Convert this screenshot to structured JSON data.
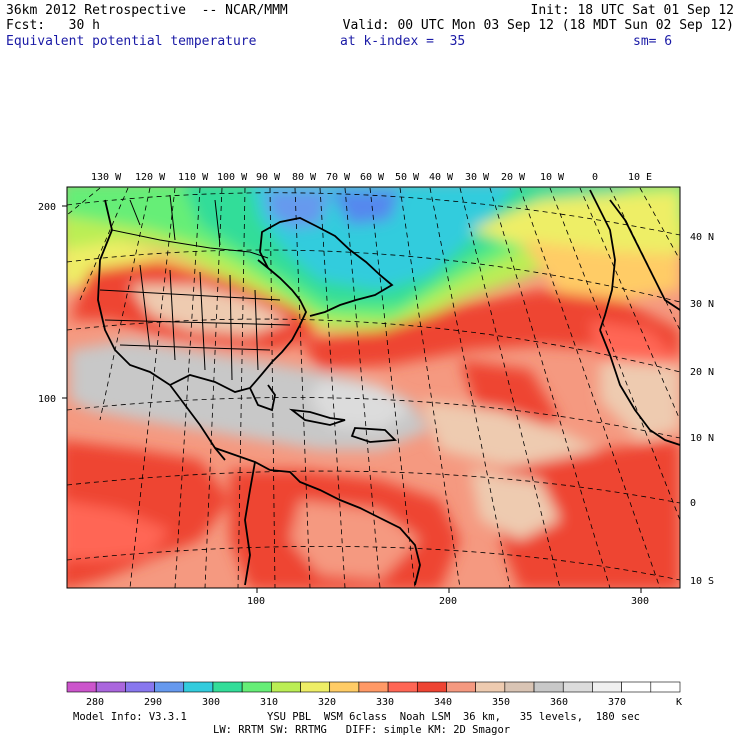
{
  "header": {
    "line1_left": "36km 2012 Retrospective  -- NCAR/MMM",
    "line1_right": "Init: 18 UTC Sat 01 Sep 12",
    "line2_left": "Fcst:   30 h",
    "line2_right": "Valid: 00 UTC Mon 03 Sep 12 (18 MDT Sun 02 Sep 12)",
    "line3_field": "Equivalent potential temperature",
    "line3_level": "at k-index =  35",
    "line3_sm": "sm= 6"
  },
  "map": {
    "top_lon_labels": [
      "130 W",
      "120 W",
      "110 W",
      "100 W",
      "90 W",
      "80 W",
      "70 W",
      "60 W",
      "50 W",
      "40 W",
      "30 W",
      "20 W",
      "10 W",
      "0",
      "10 E"
    ],
    "right_lat_labels": [
      "40 N",
      "30 N",
      "20 N",
      "10 N",
      "0",
      "10 S"
    ],
    "left_grid_labels": [
      "200",
      "100"
    ],
    "bottom_grid_labels": [
      "100",
      "200",
      "300"
    ]
  },
  "colorbar": {
    "colors": [
      "#cc55cc",
      "#aa66dd",
      "#8877ee",
      "#6699ee",
      "#33ccdd",
      "#33dd99",
      "#66ee77",
      "#bbee55",
      "#eeee66",
      "#ffcc66",
      "#ff9966",
      "#ff6655",
      "#ee4433",
      "#f59980",
      "#eecbb0",
      "#d9c4b4",
      "#c8c8c8",
      "#dcdcdc",
      "#f0f0f0",
      "#ffffff",
      "#ffffff"
    ],
    "labels": [
      "280",
      "290",
      "300",
      "310",
      "320",
      "330",
      "340",
      "350",
      "360",
      "370"
    ],
    "unit": "K"
  },
  "footer": {
    "line1_left": "Model Info: V3.3.1",
    "line1_right": "YSU PBL  WSM 6class  Noah LSM  36 km,   35 levels,  180 sec",
    "line2": "LW: RRTM SW: RRTMG   DIFF: simple KM: 2D Smagor"
  }
}
